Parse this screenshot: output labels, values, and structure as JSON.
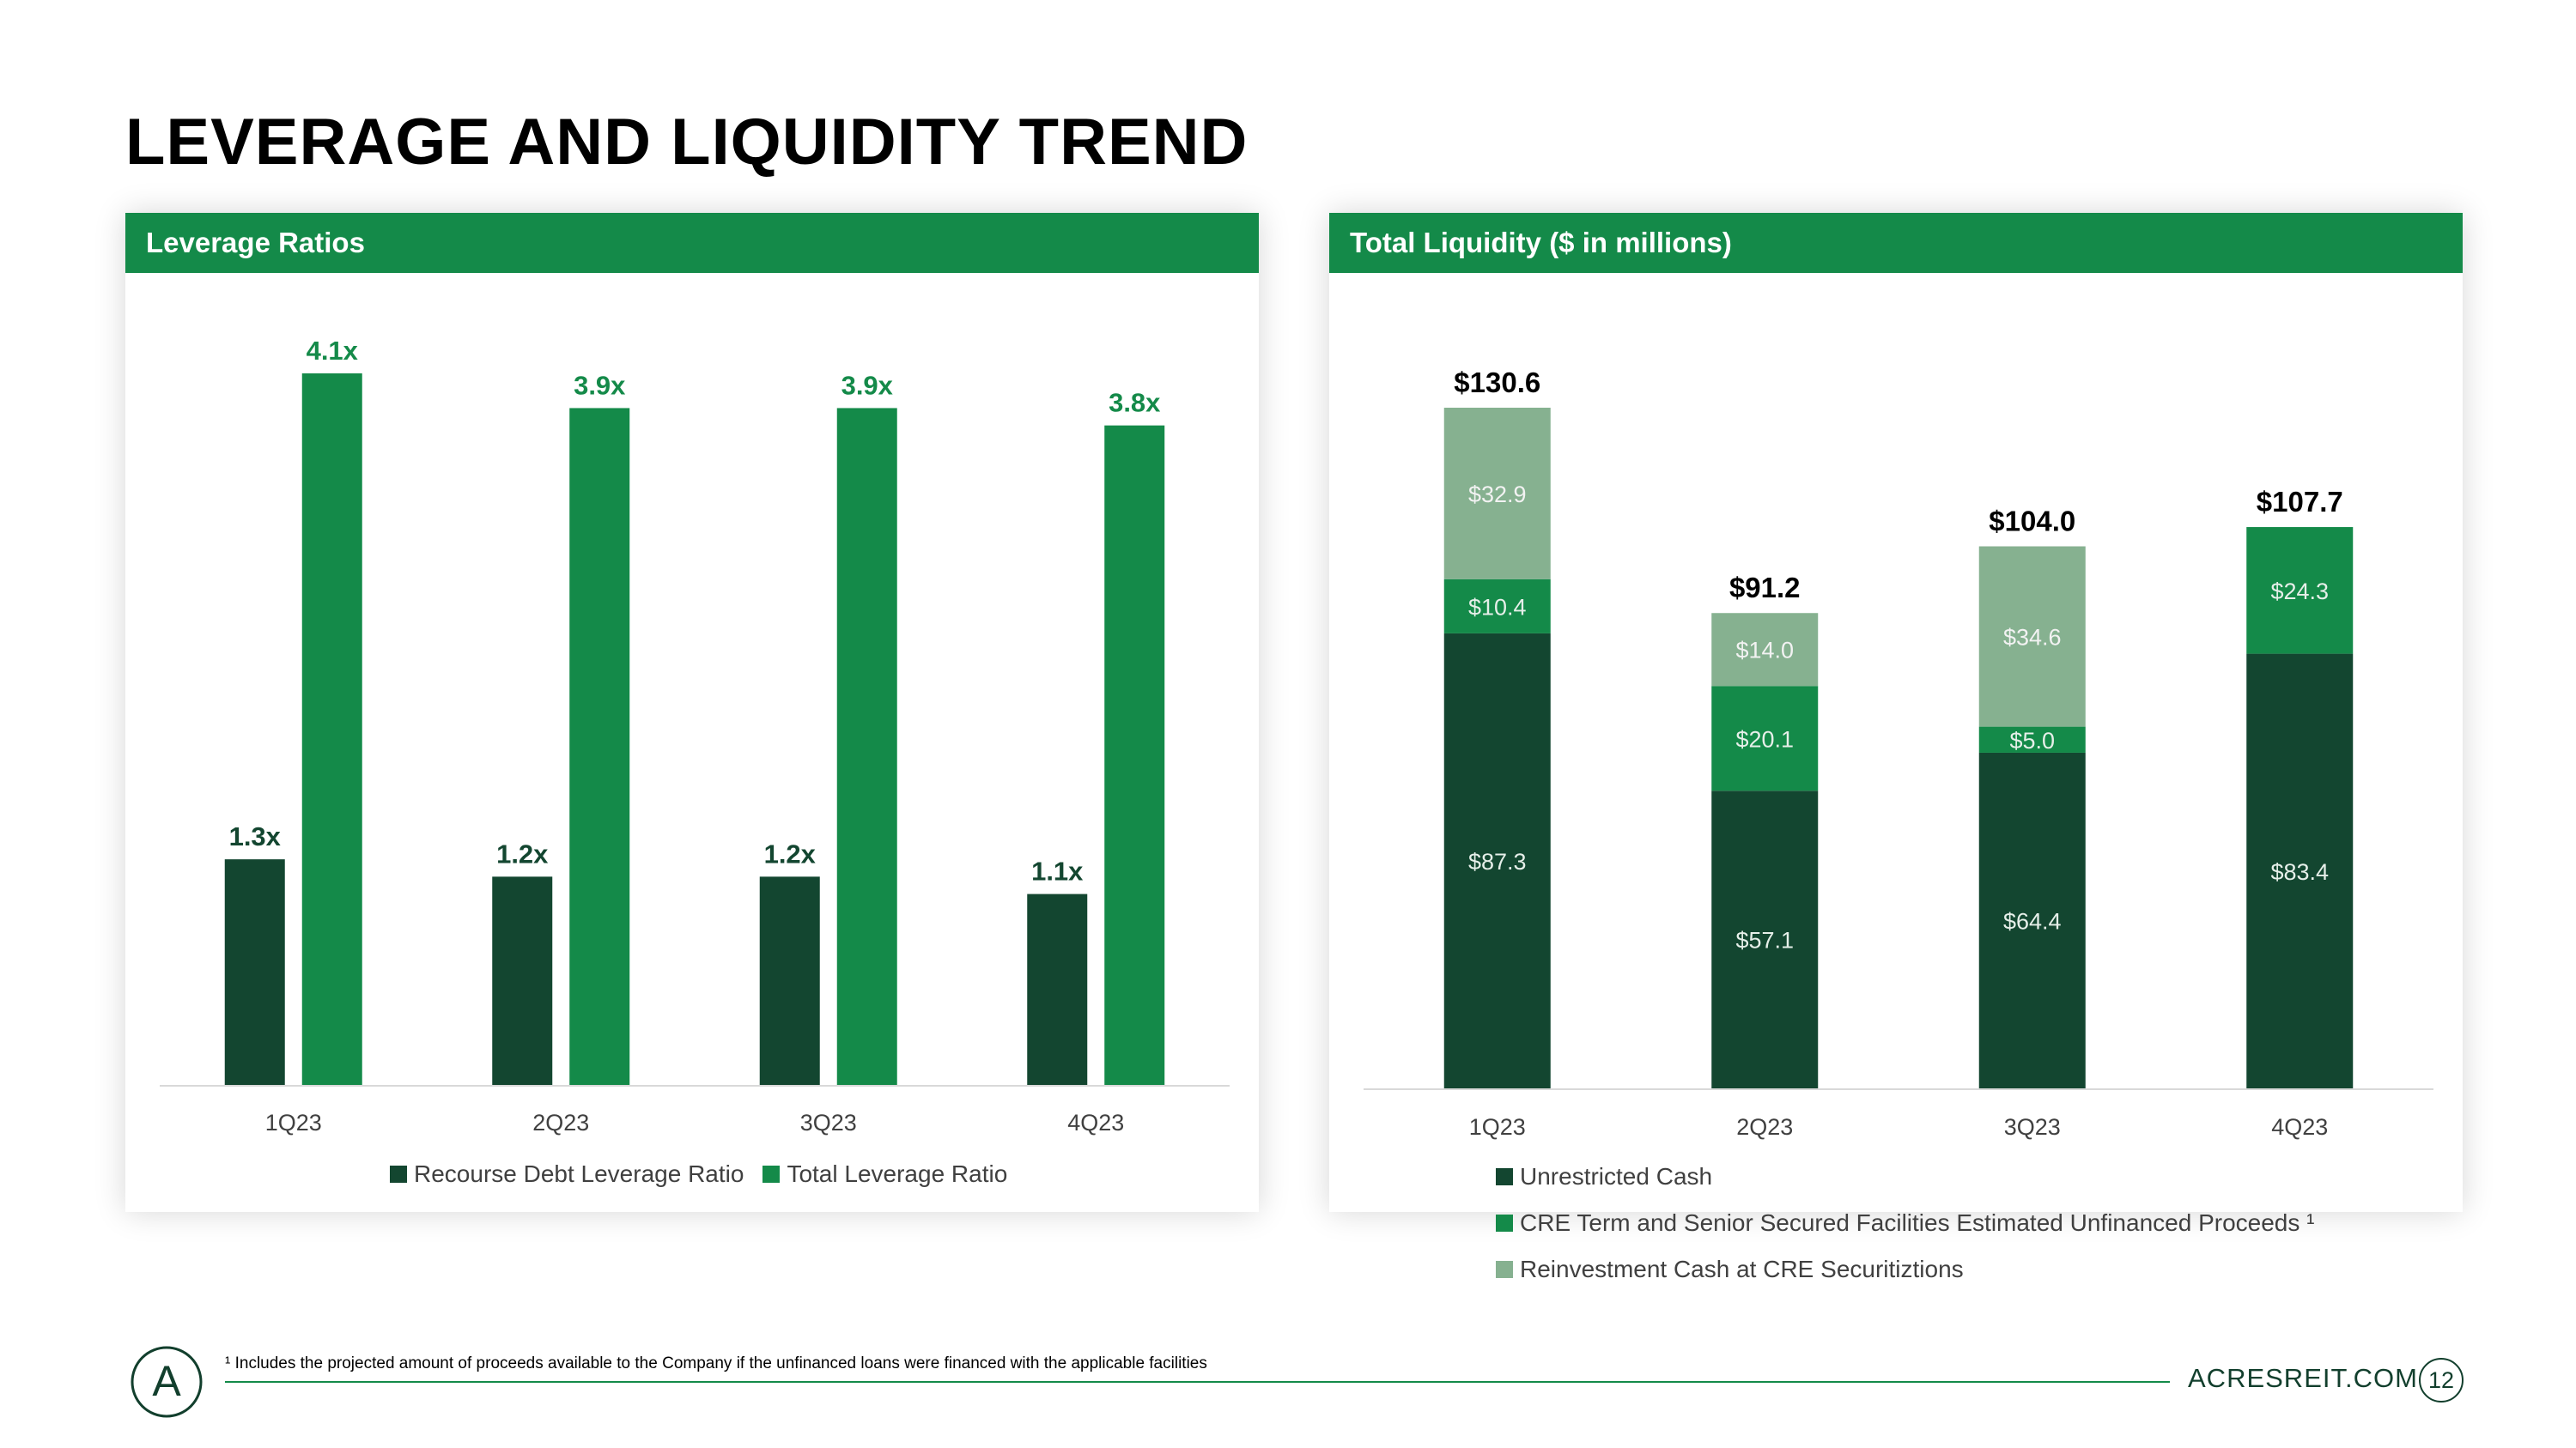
{
  "page": {
    "title": "LEVERAGE AND LIQUIDITY TREND",
    "footnote": "¹ Includes the projected amount of proceeds available to the Company if the unfinanced loans were financed with the applicable facilities",
    "website": "ACRESREIT.COM",
    "page_number": "12",
    "logo_letter": "A"
  },
  "colors": {
    "brand_green": "#148a49",
    "dark_green": "#134630",
    "light_green": "#86b190",
    "header_text": "#ffffff"
  },
  "left_panel": {
    "header": "Leverage Ratios"
  },
  "right_panel": {
    "header": "Total Liquidity ($ in millions)"
  },
  "chart_data": [
    {
      "type": "bar",
      "title": "Leverage Ratios",
      "categories": [
        "1Q23",
        "2Q23",
        "3Q23",
        "4Q23"
      ],
      "series": [
        {
          "name": "Recourse Debt Leverage Ratio",
          "values": [
            1.3,
            1.2,
            1.2,
            1.1
          ],
          "labels": [
            "1.3x",
            "1.2x",
            "1.2x",
            "1.1x"
          ],
          "color": "#134630"
        },
        {
          "name": "Total Leverage Ratio",
          "values": [
            4.1,
            3.9,
            3.9,
            3.8
          ],
          "labels": [
            "4.1x",
            "3.9x",
            "3.9x",
            "3.8x"
          ],
          "color": "#148a49"
        }
      ],
      "ylim": [
        0,
        4.1
      ],
      "legend": "bottom",
      "grid": false
    },
    {
      "type": "bar",
      "stacked": true,
      "title": "Total Liquidity ($ in millions)",
      "categories": [
        "1Q23",
        "2Q23",
        "3Q23",
        "4Q23"
      ],
      "series": [
        {
          "name": "Unrestricted Cash",
          "values": [
            87.3,
            57.1,
            64.4,
            83.4
          ],
          "labels": [
            "$87.3",
            "$57.1",
            "$64.4",
            "$83.4"
          ],
          "color": "#134630"
        },
        {
          "name": "CRE Term and Senior Secured Facilities Estimated Unfinanced Proceeds ¹",
          "values": [
            10.4,
            20.1,
            5.0,
            24.3
          ],
          "labels": [
            "$10.4",
            "$20.1",
            "$5.0",
            "$24.3"
          ],
          "color": "#148a49"
        },
        {
          "name": "Reinvestment Cash at CRE Securitiztions",
          "values": [
            32.9,
            14.0,
            34.6,
            0
          ],
          "labels": [
            "$32.9",
            "$14.0",
            "$34.6",
            ""
          ],
          "color": "#86b190"
        }
      ],
      "totals": [
        "$130.6",
        "$91.2",
        "$104.0",
        "$107.7"
      ],
      "total_values": [
        130.6,
        91.2,
        104.0,
        107.7
      ],
      "ylim": [
        0,
        130.6
      ],
      "legend": "bottom-left",
      "grid": false
    }
  ]
}
